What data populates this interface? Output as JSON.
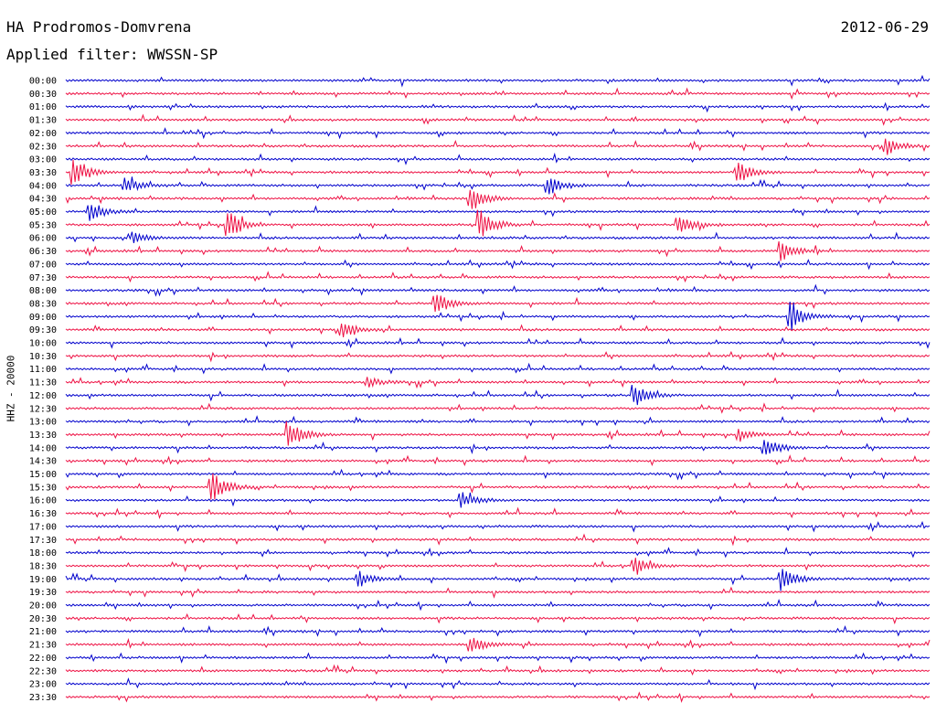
{
  "header": {
    "station": "HA Prodromos-Domvrena",
    "date": "2012-06-29",
    "filter": "Applied filter: WWSSN-SP"
  },
  "chart_data": {
    "type": "line",
    "title": "HA Prodromos-Domvrena",
    "ylabel": "HHZ - 20000",
    "series_colors": [
      "#0000cc",
      "#ee1144"
    ],
    "row_labels": [
      "00:00",
      "00:30",
      "01:00",
      "01:30",
      "02:00",
      "02:30",
      "03:00",
      "03:30",
      "04:00",
      "04:30",
      "05:00",
      "05:30",
      "06:00",
      "06:30",
      "07:00",
      "07:30",
      "08:00",
      "08:30",
      "09:00",
      "09:30",
      "10:00",
      "10:30",
      "11:00",
      "11:30",
      "12:00",
      "12:30",
      "13:00",
      "13:30",
      "14:00",
      "14:30",
      "15:00",
      "15:30",
      "16:00",
      "16:30",
      "17:00",
      "17:30",
      "18:00",
      "18:30",
      "19:00",
      "19:30",
      "20:00",
      "20:30",
      "21:00",
      "21:30",
      "22:00",
      "22:30",
      "23:00",
      "23:30"
    ],
    "events": [
      {
        "row": "03:30",
        "at": 0.01,
        "amp": 14
      },
      {
        "row": "03:30",
        "at": 0.78,
        "amp": 12
      },
      {
        "row": "04:00",
        "at": 0.07,
        "amp": 8
      },
      {
        "row": "04:00",
        "at": 0.56,
        "amp": 10
      },
      {
        "row": "04:30",
        "at": 0.47,
        "amp": 14
      },
      {
        "row": "05:00",
        "at": 0.03,
        "amp": 10
      },
      {
        "row": "05:30",
        "at": 0.19,
        "amp": 14
      },
      {
        "row": "05:30",
        "at": 0.48,
        "amp": 16
      },
      {
        "row": "05:30",
        "at": 0.71,
        "amp": 10
      },
      {
        "row": "06:00",
        "at": 0.08,
        "amp": 6
      },
      {
        "row": "06:30",
        "at": 0.83,
        "amp": 10
      },
      {
        "row": "08:30",
        "at": 0.43,
        "amp": 12
      },
      {
        "row": "09:00",
        "at": 0.84,
        "amp": 16
      },
      {
        "row": "09:30",
        "at": 0.32,
        "amp": 10
      },
      {
        "row": "11:30",
        "at": 0.35,
        "amp": 5
      },
      {
        "row": "12:00",
        "at": 0.66,
        "amp": 12
      },
      {
        "row": "13:30",
        "at": 0.26,
        "amp": 14
      },
      {
        "row": "13:30",
        "at": 0.78,
        "amp": 7
      },
      {
        "row": "14:00",
        "at": 0.81,
        "amp": 12
      },
      {
        "row": "15:30",
        "at": 0.17,
        "amp": 16
      },
      {
        "row": "16:00",
        "at": 0.46,
        "amp": 8
      },
      {
        "row": "18:30",
        "at": 0.66,
        "amp": 8
      },
      {
        "row": "19:00",
        "at": 0.34,
        "amp": 8
      },
      {
        "row": "19:00",
        "at": 0.83,
        "amp": 12
      },
      {
        "row": "21:30",
        "at": 0.47,
        "amp": 10
      },
      {
        "row": "02:30",
        "at": 0.95,
        "amp": 10
      }
    ]
  }
}
